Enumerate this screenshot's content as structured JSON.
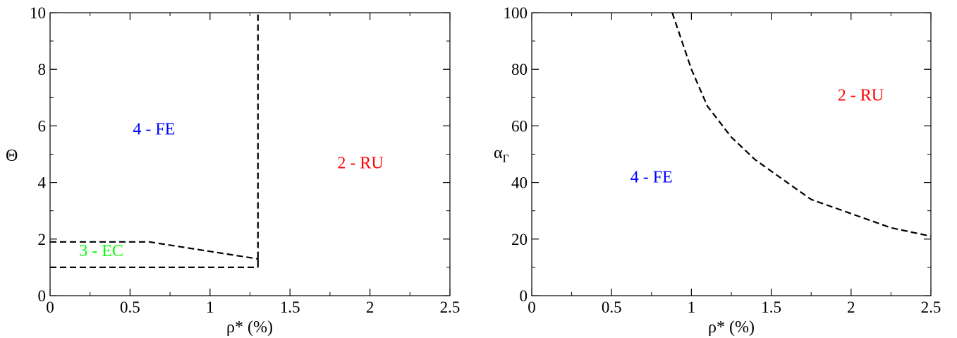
{
  "chart_data": [
    {
      "type": "line",
      "xlabel_main": "ρ*",
      "xlabel_unit": "(%)",
      "ylabel": "Θ",
      "ylabel_sub": "",
      "xlim": [
        0,
        2.5
      ],
      "ylim": [
        0,
        10
      ],
      "xticks": [
        0,
        0.5,
        1,
        1.5,
        2,
        2.5
      ],
      "xtick_labels": [
        "0",
        "0.5",
        "1",
        "1.5",
        "2",
        "2.5"
      ],
      "yticks": [
        0,
        2,
        4,
        6,
        8,
        10
      ],
      "ytick_labels": [
        "0",
        "2",
        "4",
        "6",
        "8",
        "10"
      ],
      "grid": false,
      "series": [
        {
          "style": "dashed",
          "color": "#000000",
          "x": [
            0,
            0.62,
            1.3,
            1.3,
            1.3
          ],
          "y": [
            1.9,
            1.9,
            1.3,
            1.0,
            10
          ]
        },
        {
          "style": "dashed",
          "color": "#000000",
          "x": [
            0,
            1.3
          ],
          "y": [
            1.0,
            1.0
          ]
        }
      ],
      "annotations": [
        {
          "text": "4 - FE",
          "x": 0.65,
          "y": 5.7,
          "color": "#0000ff"
        },
        {
          "text": "2 - RU",
          "x": 1.94,
          "y": 4.5,
          "color": "#ff0000"
        },
        {
          "text": "3 - EC",
          "x": 0.32,
          "y": 1.4,
          "color": "#00ff00"
        }
      ]
    },
    {
      "type": "line",
      "xlabel_main": "ρ*",
      "xlabel_unit": "(%)",
      "ylabel": "α",
      "ylabel_sub": "Γ",
      "xlim": [
        0,
        2.5
      ],
      "ylim": [
        0,
        100
      ],
      "xticks": [
        0,
        0.5,
        1,
        1.5,
        2,
        2.5
      ],
      "xtick_labels": [
        "0",
        "0.5",
        "1",
        "1.5",
        "2",
        "2.5"
      ],
      "yticks": [
        0,
        20,
        40,
        60,
        80,
        100
      ],
      "ytick_labels": [
        "0",
        "20",
        "40",
        "60",
        "80",
        "100"
      ],
      "grid": false,
      "series": [
        {
          "style": "dashed",
          "color": "#000000",
          "x": [
            0.88,
            1.0,
            1.1,
            1.25,
            1.4,
            1.55,
            1.75,
            2.0,
            2.25,
            2.5
          ],
          "y": [
            100,
            80,
            67,
            56,
            48,
            42,
            34,
            29,
            24,
            21
          ]
        }
      ],
      "annotations": [
        {
          "text": "2 - RU",
          "x": 2.06,
          "y": 69,
          "color": "#ff0000"
        },
        {
          "text": "4 - FE",
          "x": 0.75,
          "y": 40,
          "color": "#0000ff"
        }
      ]
    }
  ]
}
